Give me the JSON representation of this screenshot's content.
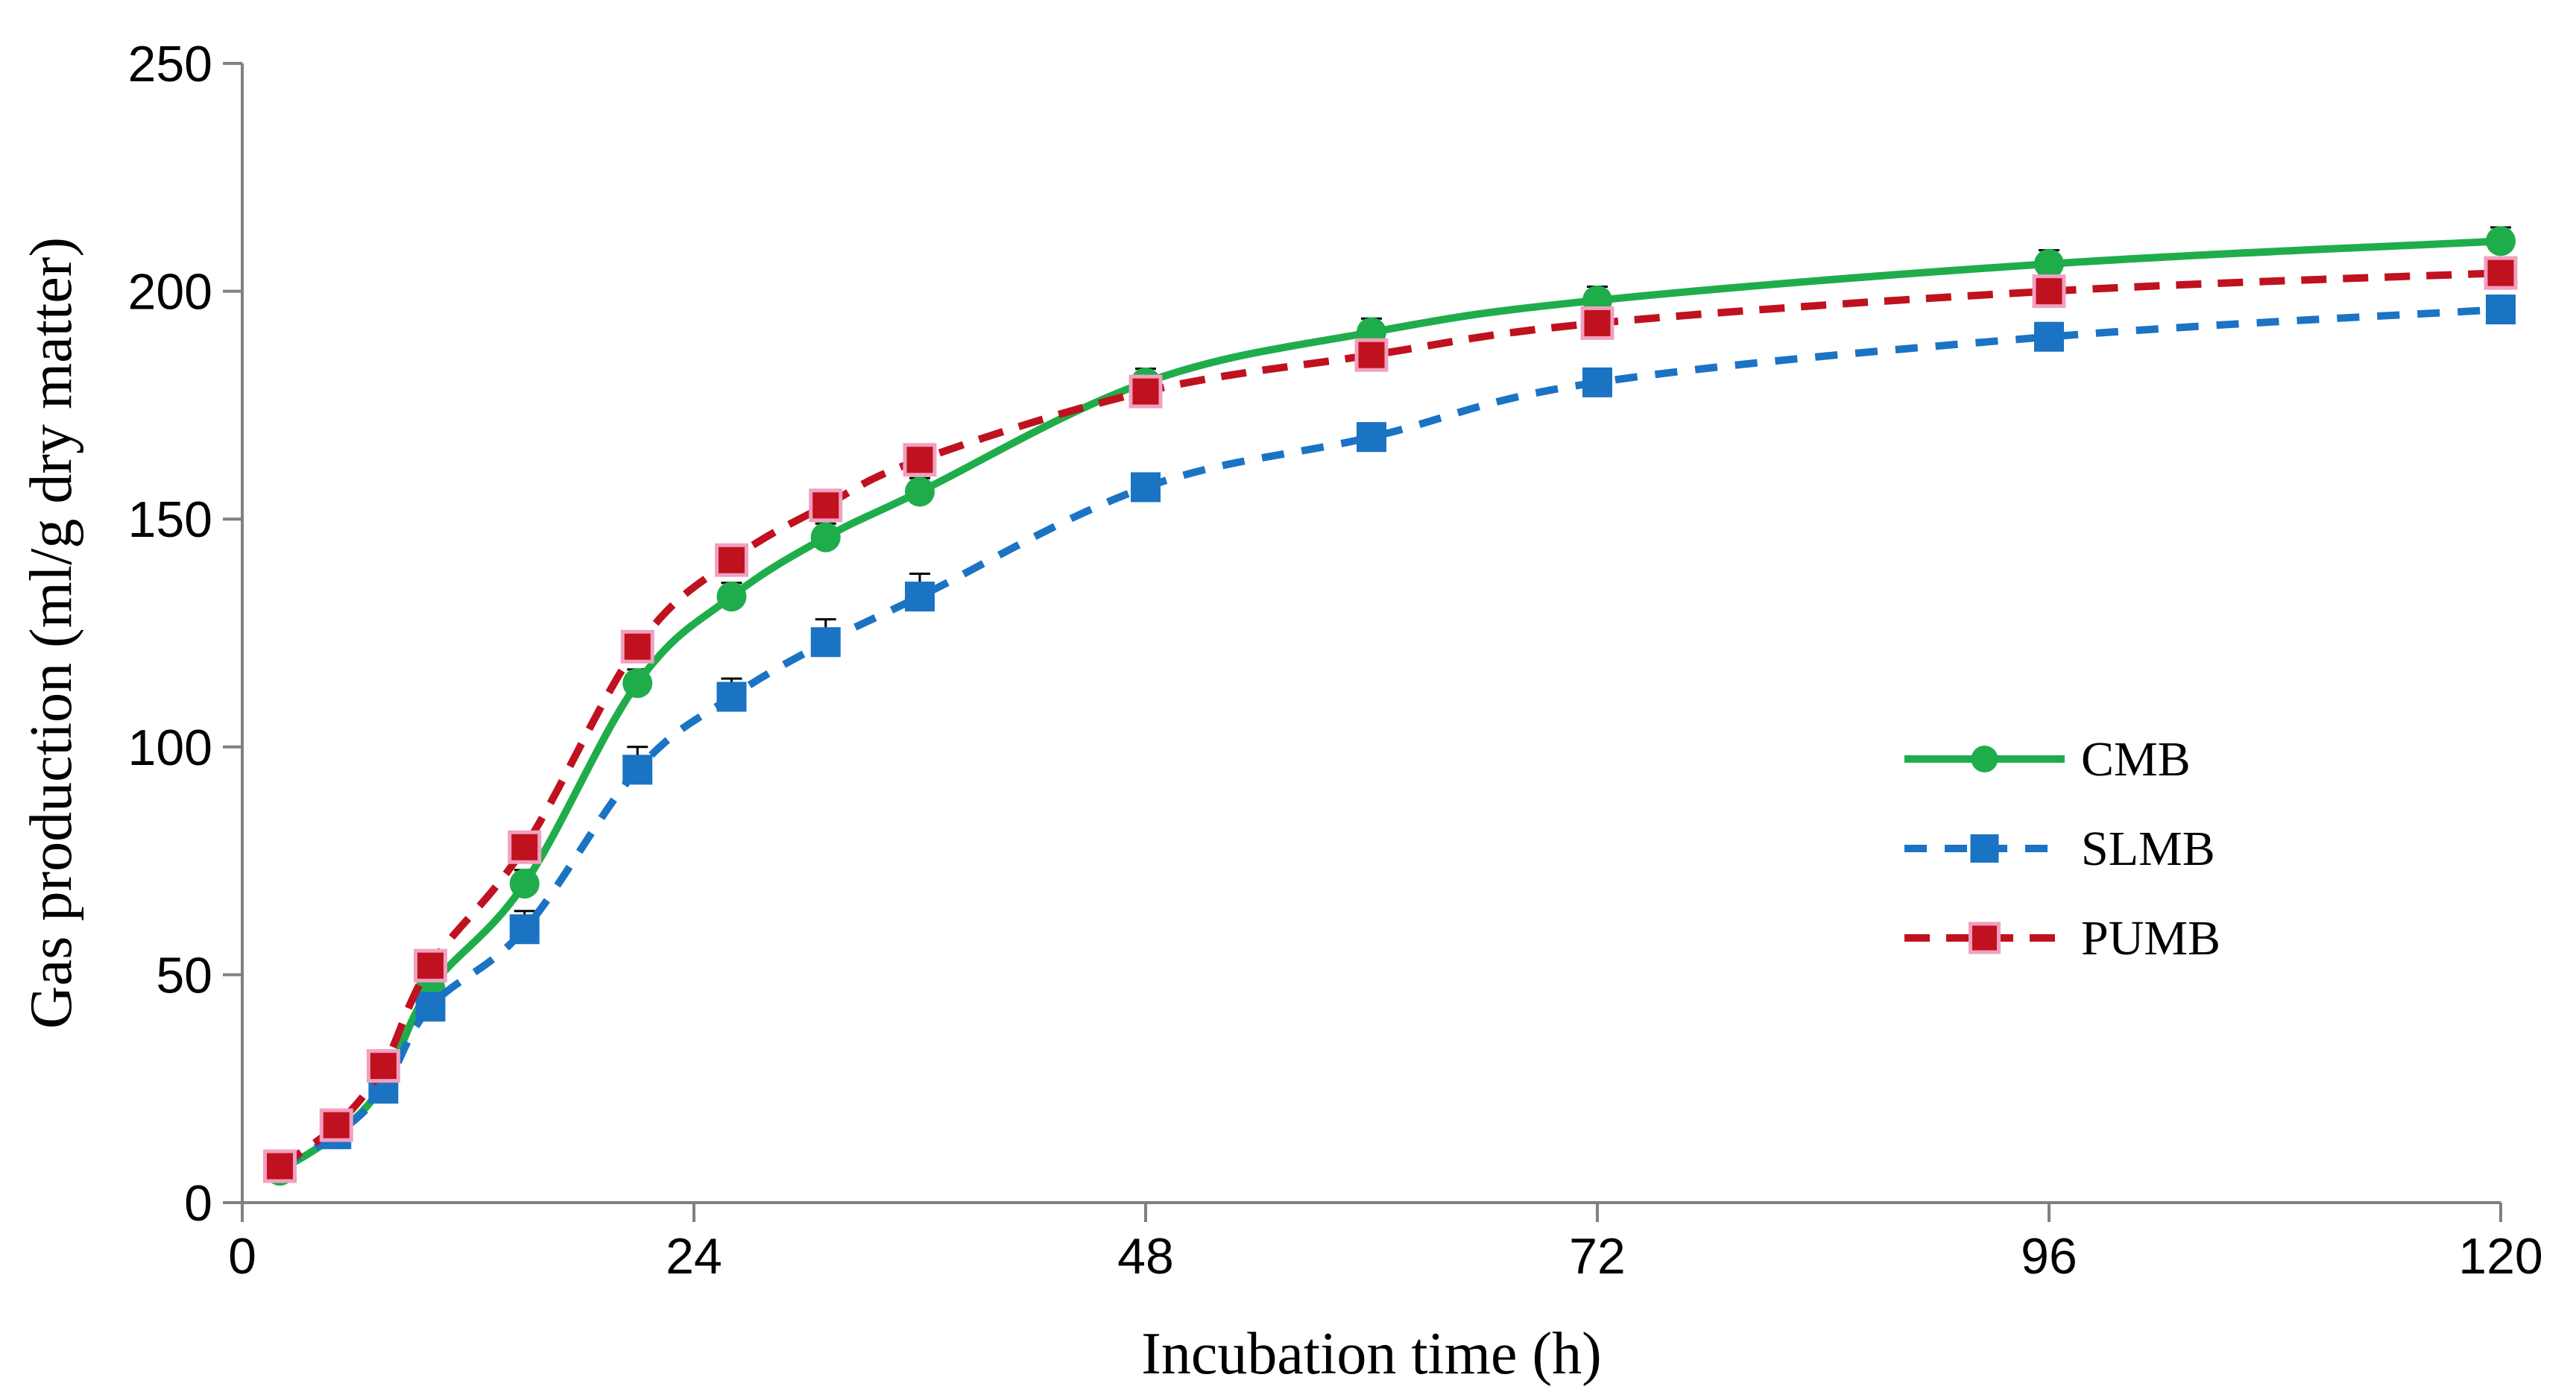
{
  "chart_data": {
    "type": "line",
    "title": "",
    "xlabel": "Incubation time (h)",
    "ylabel": "Gas production (ml/g dry matter)",
    "xlim": [
      0,
      120
    ],
    "ylim": [
      0,
      250
    ],
    "xticks": [
      0,
      24,
      48,
      72,
      96,
      120
    ],
    "yticks": [
      0,
      50,
      100,
      150,
      200,
      250
    ],
    "grid": false,
    "legend_position": "right",
    "x": [
      2,
      5,
      7.5,
      10,
      15,
      21,
      26,
      31,
      36,
      48,
      60,
      72,
      96,
      120
    ],
    "series": [
      {
        "name": "CMB",
        "color": "#1fad4b",
        "line_style": "solid",
        "marker": "circle",
        "values": [
          7,
          15,
          26,
          47,
          70,
          114,
          133,
          146,
          156,
          180,
          191,
          198,
          206,
          211
        ],
        "errors": [
          1,
          1,
          2,
          2,
          3,
          3,
          3,
          3,
          3,
          3,
          3,
          3,
          3,
          3
        ]
      },
      {
        "name": "SLMB",
        "color": "#1b73c4",
        "line_style": "dashed",
        "marker": "square",
        "values": [
          8,
          15,
          25,
          43,
          60,
          95,
          111,
          123,
          133,
          157,
          168,
          180,
          190,
          196
        ],
        "errors": [
          1,
          1,
          2,
          2,
          4,
          5,
          4,
          5,
          5,
          3,
          3,
          3,
          3,
          3
        ]
      },
      {
        "name": "PUMB",
        "color": "#c0111f",
        "marker_edge_color": "#f0a0c0",
        "line_style": "dashed",
        "marker": "square",
        "values": [
          8,
          17,
          30,
          52,
          78,
          122,
          141,
          153,
          163,
          178,
          186,
          193,
          200,
          204
        ],
        "errors": [
          1,
          1,
          2,
          2,
          3,
          3,
          3,
          3,
          3,
          3,
          3,
          3,
          3,
          3
        ]
      }
    ]
  }
}
